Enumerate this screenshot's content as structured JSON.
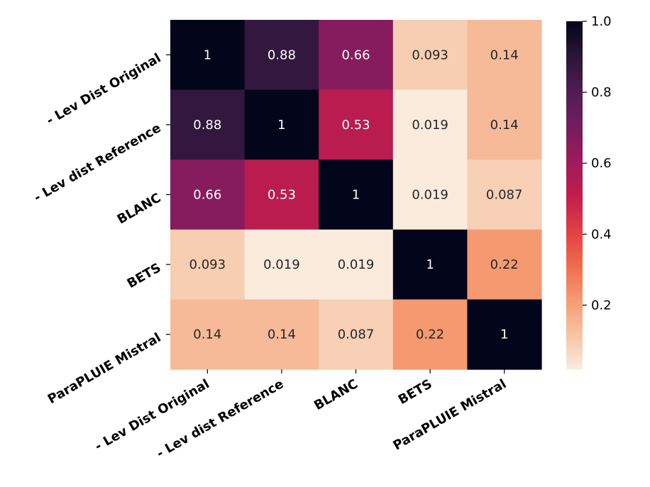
{
  "chart_data": {
    "type": "heatmap",
    "rows": [
      "- Lev Dist Original",
      "- Lev dist Reference",
      "BLANC",
      "BETS",
      "ParaPLUIE Mistral"
    ],
    "columns": [
      "- Lev Dist Original",
      "- Lev dist Reference",
      "BLANC",
      "BETS",
      "ParaPLUIE Mistral"
    ],
    "values": [
      [
        1,
        0.88,
        0.66,
        0.093,
        0.14
      ],
      [
        0.88,
        1,
        0.53,
        0.019,
        0.14
      ],
      [
        0.66,
        0.53,
        1,
        0.019,
        0.087
      ],
      [
        0.093,
        0.019,
        0.019,
        1,
        0.22
      ],
      [
        0.14,
        0.14,
        0.087,
        0.22,
        1
      ]
    ],
    "annotations": [
      [
        "1",
        "0.88",
        "0.66",
        "0.093",
        "0.14"
      ],
      [
        "0.88",
        "1",
        "0.53",
        "0.019",
        "0.14"
      ],
      [
        "0.66",
        "0.53",
        "1",
        "0.019",
        "0.087"
      ],
      [
        "0.093",
        "0.019",
        "0.019",
        "1",
        "0.22"
      ],
      [
        "0.14",
        "0.14",
        "0.087",
        "0.22",
        "1"
      ]
    ],
    "colorbar": {
      "range": [
        0.019,
        1.0
      ],
      "ticks": [
        1.0,
        0.8,
        0.6,
        0.4,
        0.2
      ],
      "tick_labels": [
        "1.0",
        "0.8",
        "0.6",
        "0.4",
        "0.2"
      ],
      "colormap": "rocket_r"
    }
  }
}
